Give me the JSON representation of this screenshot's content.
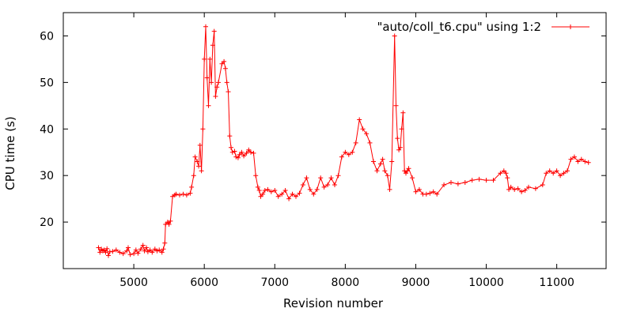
{
  "chart_data": {
    "type": "line",
    "title": "",
    "xlabel": "Revision number",
    "ylabel": "CPU time (s)",
    "xlim": [
      4000,
      11700
    ],
    "ylim": [
      10,
      65
    ],
    "x_ticks": [
      5000,
      6000,
      7000,
      8000,
      9000,
      10000,
      11000
    ],
    "y_ticks": [
      20,
      30,
      40,
      50,
      60
    ],
    "grid": false,
    "legend_position": "top-right",
    "series": [
      {
        "name": "\"auto/coll_t6.cpu\" using 1:2",
        "color": "#ff0000",
        "marker": "plus",
        "x": [
          4500,
          4520,
          4540,
          4560,
          4580,
          4600,
          4620,
          4640,
          4660,
          4700,
          4750,
          4800,
          4850,
          4900,
          4920,
          4950,
          5000,
          5030,
          5060,
          5100,
          5130,
          5150,
          5180,
          5200,
          5230,
          5260,
          5300,
          5330,
          5360,
          5400,
          5420,
          5440,
          5450,
          5480,
          5500,
          5520,
          5550,
          5580,
          5600,
          5650,
          5700,
          5750,
          5800,
          5820,
          5850,
          5870,
          5900,
          5920,
          5940,
          5960,
          5980,
          6000,
          6020,
          6040,
          6060,
          6080,
          6100,
          6120,
          6140,
          6160,
          6180,
          6200,
          6250,
          6280,
          6300,
          6320,
          6340,
          6360,
          6380,
          6400,
          6430,
          6450,
          6480,
          6500,
          6530,
          6560,
          6600,
          6630,
          6660,
          6700,
          6730,
          6760,
          6780,
          6800,
          6830,
          6860,
          6900,
          6950,
          7000,
          7050,
          7100,
          7150,
          7200,
          7250,
          7300,
          7350,
          7400,
          7450,
          7500,
          7550,
          7600,
          7650,
          7700,
          7750,
          7800,
          7850,
          7900,
          7950,
          8000,
          8050,
          8100,
          8150,
          8200,
          8250,
          8300,
          8350,
          8400,
          8450,
          8500,
          8530,
          8560,
          8600,
          8630,
          8660,
          8700,
          8720,
          8740,
          8760,
          8780,
          8800,
          8820,
          8840,
          8860,
          8880,
          8900,
          8950,
          9000,
          9050,
          9100,
          9150,
          9200,
          9250,
          9300,
          9400,
          9500,
          9600,
          9700,
          9800,
          9900,
          10000,
          10100,
          10200,
          10250,
          10280,
          10300,
          10320,
          10350,
          10400,
          10450,
          10500,
          10550,
          10600,
          10700,
          10800,
          10850,
          10900,
          10950,
          11000,
          11050,
          11100,
          11150,
          11200,
          11250,
          11300,
          11350,
          11400,
          11450
        ],
        "y": [
          14.5,
          13.5,
          14.2,
          13.8,
          14.0,
          13.5,
          14.3,
          12.8,
          13.6,
          13.7,
          14.0,
          13.5,
          13.2,
          13.8,
          14.5,
          13.0,
          13.2,
          14.0,
          13.3,
          14.2,
          15.0,
          13.8,
          14.5,
          13.6,
          14.0,
          13.5,
          14.2,
          13.8,
          14.0,
          13.5,
          14.2,
          15.5,
          19.5,
          20.0,
          19.5,
          20.2,
          25.5,
          25.8,
          26.0,
          25.8,
          26.0,
          25.8,
          26.2,
          27.5,
          30.0,
          34.0,
          33.0,
          32.0,
          36.5,
          31.0,
          40.0,
          55.0,
          62.0,
          51.0,
          45.0,
          55.0,
          50.0,
          58.0,
          61.0,
          47.0,
          49.0,
          50.0,
          54.0,
          54.5,
          53.0,
          50.0,
          48.0,
          38.5,
          36.0,
          35.0,
          35.2,
          34.0,
          33.8,
          34.5,
          35.0,
          34.2,
          34.8,
          35.5,
          35.0,
          34.8,
          30.0,
          27.5,
          26.8,
          25.5,
          26.0,
          26.8,
          27.0,
          26.5,
          26.8,
          25.5,
          26.0,
          26.8,
          25.0,
          26.0,
          25.5,
          26.2,
          28.0,
          29.5,
          27.0,
          26.0,
          27.0,
          29.5,
          27.5,
          28.0,
          29.5,
          28.0,
          30.0,
          34.0,
          35.0,
          34.5,
          35.0,
          37.0,
          42.0,
          40.0,
          39.0,
          37.0,
          33.0,
          31.0,
          32.5,
          33.5,
          31.0,
          30.0,
          27.0,
          33.0,
          60.0,
          45.0,
          38.0,
          35.5,
          36.0,
          40.0,
          43.5,
          31.0,
          30.5,
          31.0,
          31.5,
          29.5,
          26.5,
          27.0,
          26.0,
          26.0,
          26.2,
          26.5,
          26.0,
          28.0,
          28.5,
          28.2,
          28.5,
          29.0,
          29.2,
          29.0,
          29.0,
          30.5,
          31.0,
          30.5,
          29.5,
          27.0,
          27.5,
          27.0,
          27.2,
          26.5,
          26.8,
          27.5,
          27.2,
          28.0,
          30.5,
          31.0,
          30.5,
          31.0,
          30.0,
          30.5,
          31.0,
          33.5,
          34.0,
          33.0,
          33.5,
          33.0,
          32.8
        ]
      }
    ]
  }
}
